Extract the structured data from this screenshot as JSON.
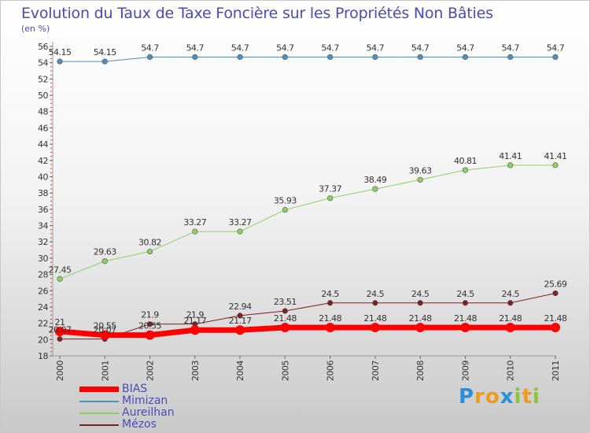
{
  "title": "Evolution du Taux de Taxe Foncière sur les Propriétés Non Bâties",
  "unit_label": "(en %)",
  "brand": {
    "text": "Proxiti",
    "letters": [
      "P",
      "r",
      "o",
      "x",
      "i",
      "t",
      "i"
    ],
    "colors": [
      "#2a8fd8",
      "#f09a1e",
      "#f09a1e",
      "#2a8fd8",
      "#8ac43f",
      "#f09a1e",
      "#8ac43f"
    ]
  },
  "chart_data": {
    "type": "line",
    "title": "Evolution du Taux de Taxe Foncière sur les Propriétés Non Bâties",
    "ylabel": "(en %)",
    "categories": [
      "2000",
      "2001",
      "2002",
      "2003",
      "2004",
      "2005",
      "2006",
      "2007",
      "2008",
      "2009",
      "2010",
      "2011"
    ],
    "ylim": [
      18,
      56
    ],
    "yticks": [
      18,
      20,
      22,
      24,
      26,
      28,
      30,
      32,
      34,
      36,
      38,
      40,
      42,
      44,
      46,
      48,
      50,
      52,
      54,
      56
    ],
    "grid": false,
    "legend_position": "bottom-left",
    "series": [
      {
        "name": "BIAS",
        "color": "#ff0000",
        "width": 7,
        "values": [
          21,
          20.55,
          20.55,
          21.17,
          21.17,
          21.48,
          21.48,
          21.48,
          21.48,
          21.48,
          21.48,
          21.48
        ],
        "labels": [
          "21",
          "20.55",
          "20.55",
          "21.17",
          "21.17",
          "21.48",
          "21.48",
          "21.48",
          "21.48",
          "21.48",
          "21.48",
          "21.48"
        ]
      },
      {
        "name": "Mimizan",
        "color": "#4f8fc0",
        "width": 1,
        "values": [
          54.15,
          54.15,
          54.7,
          54.7,
          54.7,
          54.7,
          54.7,
          54.7,
          54.7,
          54.7,
          54.7,
          54.7
        ],
        "labels": [
          "54.15",
          "54.15",
          "54.7",
          "54.7",
          "54.7",
          "54.7",
          "54.7",
          "54.7",
          "54.7",
          "54.7",
          "54.7",
          "54.7"
        ]
      },
      {
        "name": "Aureilhan",
        "color": "#8fd062",
        "width": 1,
        "values": [
          27.45,
          29.63,
          30.82,
          33.27,
          33.27,
          35.93,
          37.37,
          38.49,
          39.63,
          40.81,
          41.41,
          41.41
        ],
        "labels": [
          "27.45",
          "29.63",
          "30.82",
          "33.27",
          "33.27",
          "35.93",
          "37.37",
          "38.49",
          "39.63",
          "40.81",
          "41.41",
          "41.41"
        ]
      },
      {
        "name": "Mézos",
        "color": "#7a2222",
        "width": 1,
        "values": [
          20.07,
          20.07,
          21.9,
          21.9,
          22.94,
          23.51,
          24.5,
          24.5,
          24.5,
          24.5,
          24.5,
          25.69
        ],
        "labels": [
          "20.07",
          "20.07",
          "21.9",
          "21.9",
          "22.94",
          "23.51",
          "24.5",
          "24.5",
          "24.5",
          "24.5",
          "24.5",
          "25.69"
        ]
      }
    ]
  }
}
